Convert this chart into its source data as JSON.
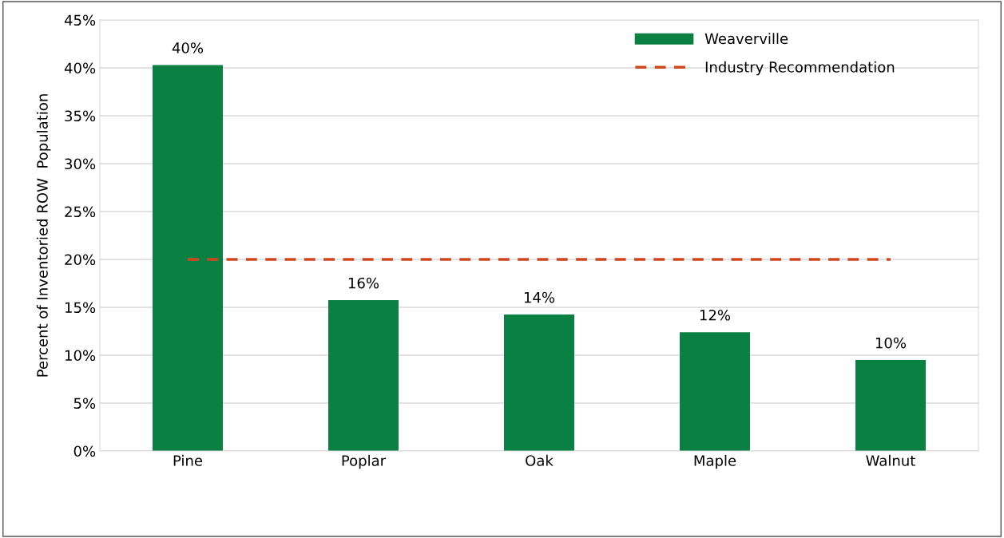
{
  "chart_data": {
    "type": "bar",
    "ylabel": "Percent of Inventoried ROW  Population",
    "categories": [
      "Pine",
      "Poplar",
      "Oak",
      "Maple",
      "Walnut"
    ],
    "series": [
      {
        "name": "Weaverville",
        "color": "#0b8043",
        "values": [
          40.3,
          15.75,
          14.25,
          12.4,
          9.5
        ],
        "value_labels": [
          "40%",
          "16%",
          "14%",
          "12%",
          "10%"
        ]
      },
      {
        "name": "Industry Recommendation",
        "type": "line",
        "color": "#d0461c",
        "line_style": "dashed",
        "values": [
          20,
          20,
          20,
          20,
          20
        ]
      }
    ],
    "ylim": [
      0,
      45
    ],
    "yticks": [
      {
        "value": 0,
        "label": "0%"
      },
      {
        "value": 5,
        "label": "5%"
      },
      {
        "value": 10,
        "label": "10%"
      },
      {
        "value": 15,
        "label": "15%"
      },
      {
        "value": 20,
        "label": "20%"
      },
      {
        "value": 25,
        "label": "25%"
      },
      {
        "value": 30,
        "label": "30%"
      },
      {
        "value": 35,
        "label": "35%"
      },
      {
        "value": 40,
        "label": "40%"
      },
      {
        "value": 45,
        "label": "45%"
      }
    ],
    "grid": "y",
    "legend": "top right"
  }
}
